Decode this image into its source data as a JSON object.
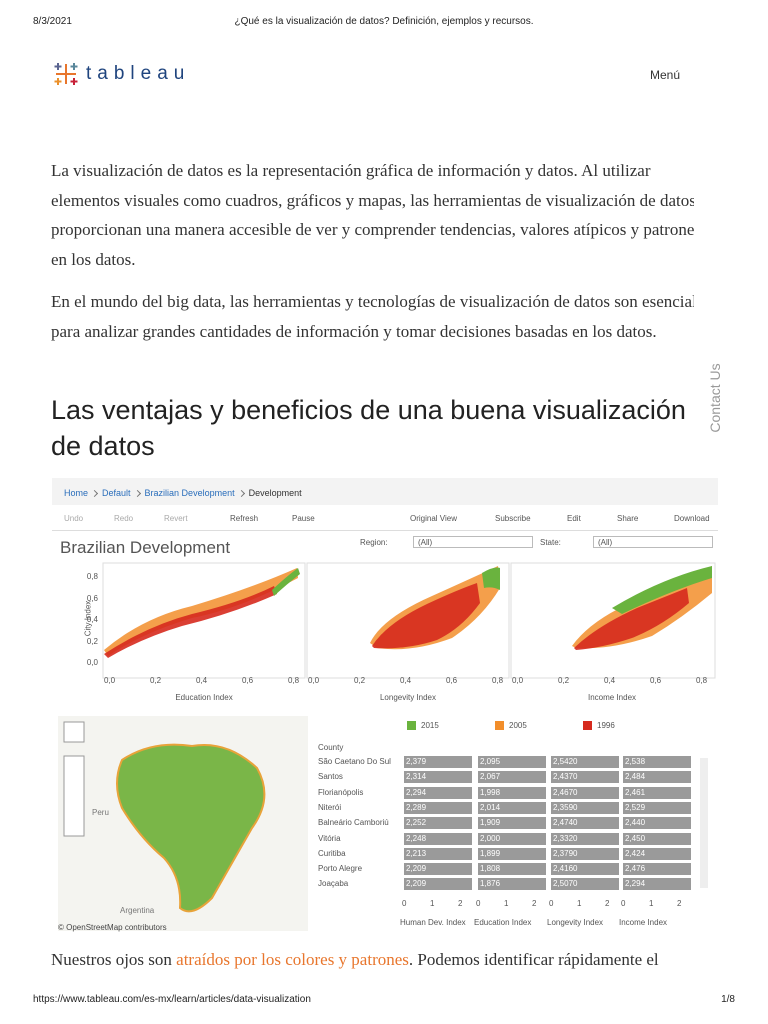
{
  "header": {
    "date": "8/3/2021",
    "page_title": "¿Qué es la visualización de datos? Definición, ejemplos y recursos."
  },
  "nav": {
    "logo": "tableau",
    "menu": "Menú"
  },
  "side_tab": "Contact Us",
  "paragraphs": [
    "La visualización de datos es la representación gráfica de información y datos. Al utilizar elementos visuales como cuadros, gráficos y mapas, las herramientas de visualización de datos proporcionan una manera accesible de ver y comprender tendencias, valores atípicos y patrones en los datos.",
    "En el mundo del big data, las herramientas y tecnologías de visualización de datos son esenciales para analizar grandes cantidades de información y tomar decisiones basadas en los datos."
  ],
  "heading": "Las ventajas y beneficios de una buena visualización de datos",
  "dashboard": {
    "breadcrumb": [
      "Home",
      "Default",
      "Brazilian Development",
      "Development"
    ],
    "toolbar": [
      "Undo",
      "Redo",
      "Revert",
      "Refresh",
      "Pause",
      "Original View",
      "Subscribe",
      "Edit",
      "Share",
      "Download"
    ],
    "title": "Brazilian Development",
    "filters": [
      {
        "label": "Region:",
        "value": "(All)"
      },
      {
        "label": "State:",
        "value": "(All)"
      }
    ],
    "y_axis_label": "City Index",
    "yticks": [
      "0,8",
      "0,6",
      "0,4",
      "0,2",
      "0,0"
    ],
    "xticks": [
      "0,0",
      "0,2",
      "0,4",
      "0,6",
      "0,8"
    ],
    "x_axis_labels": [
      "Education Index",
      "Longevity Index",
      "Income Index"
    ],
    "legend": [
      {
        "name": "2015",
        "color": "#6ab33e"
      },
      {
        "name": "2005",
        "color": "#f28e2b"
      },
      {
        "name": "1996",
        "color": "#d62a1e"
      }
    ],
    "map_labels": [
      "Peru",
      "Argentina"
    ],
    "map_credit": "© OpenStreetMap contributors",
    "table": {
      "header": "County",
      "rows": [
        [
          "São Caetano Do Sul",
          "2,379",
          "2,095",
          "2,5420",
          "2,538"
        ],
        [
          "Santos",
          "2,314",
          "2,067",
          "2,4370",
          "2,484"
        ],
        [
          "Florianópolis",
          "2,294",
          "1,998",
          "2,4670",
          "2,461"
        ],
        [
          "Niterói",
          "2,289",
          "2,014",
          "2,3590",
          "2,529"
        ],
        [
          "Balneário Camboriú",
          "2,252",
          "1,909",
          "2,4740",
          "2,440"
        ],
        [
          "Vitória",
          "2,248",
          "2,000",
          "2,3320",
          "2,450"
        ],
        [
          "Curitiba",
          "2,213",
          "1,899",
          "2,3790",
          "2,424"
        ],
        [
          "Porto Alegre",
          "2,209",
          "1,808",
          "2,4160",
          "2,476"
        ],
        [
          "Joaçaba",
          "2,209",
          "1,876",
          "2,5070",
          "2,294"
        ]
      ],
      "axis_ticks": [
        "0",
        "1",
        "2"
      ],
      "columns": [
        "Human Dev. Index",
        "Education Index",
        "Longevity Index",
        "Income Index"
      ]
    }
  },
  "closing": {
    "before": "Nuestros ojos son ",
    "link": "atraídos por los colores y patrones",
    "after": ". Podemos identificar rápidamente el"
  },
  "footer": {
    "url": "https://www.tableau.com/es-mx/learn/articles/data-visualization",
    "page": "1/8"
  }
}
